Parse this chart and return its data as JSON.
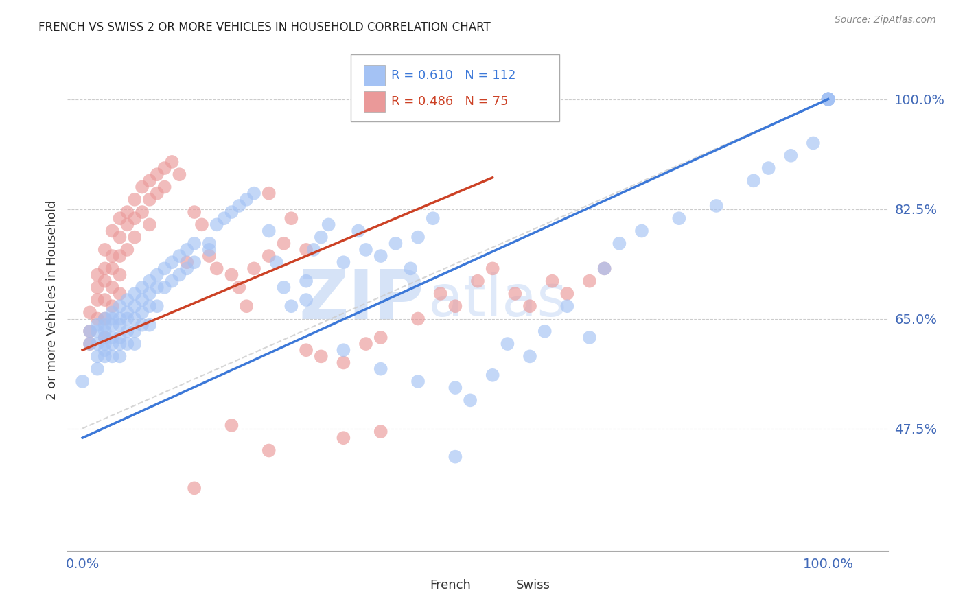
{
  "title": "FRENCH VS SWISS 2 OR MORE VEHICLES IN HOUSEHOLD CORRELATION CHART",
  "source": "Source: ZipAtlas.com",
  "ylabel": "2 or more Vehicles in Household",
  "french_R": 0.61,
  "french_N": 112,
  "swiss_R": 0.486,
  "swiss_N": 75,
  "french_color": "#a4c2f4",
  "swiss_color": "#ea9999",
  "french_line_color": "#3c78d8",
  "swiss_line_color": "#cc4125",
  "ref_line_color": "#cccccc",
  "watermark_zip": "ZIP",
  "watermark_atlas": "atlas",
  "legend_french_label": "French",
  "legend_swiss_label": "Swiss",
  "xlim": [
    -0.02,
    1.08
  ],
  "ylim": [
    0.28,
    1.08
  ],
  "y_ticks": [
    0.475,
    0.65,
    0.825,
    1.0
  ],
  "y_tick_labels": [
    "47.5%",
    "65.0%",
    "82.5%",
    "100.0%"
  ],
  "x_ticks": [
    0.0,
    1.0
  ],
  "x_tick_labels": [
    "0.0%",
    "100.0%"
  ],
  "french_trend": [
    0.0,
    0.46,
    1.0,
    1.0
  ],
  "swiss_trend": [
    0.0,
    0.6,
    0.55,
    0.875
  ],
  "ref_line": [
    0.0,
    0.475,
    1.0,
    1.0
  ],
  "french_x": [
    0.0,
    0.01,
    0.01,
    0.02,
    0.02,
    0.02,
    0.02,
    0.02,
    0.03,
    0.03,
    0.03,
    0.03,
    0.03,
    0.03,
    0.03,
    0.04,
    0.04,
    0.04,
    0.04,
    0.04,
    0.04,
    0.05,
    0.05,
    0.05,
    0.05,
    0.05,
    0.05,
    0.06,
    0.06,
    0.06,
    0.06,
    0.06,
    0.07,
    0.07,
    0.07,
    0.07,
    0.07,
    0.08,
    0.08,
    0.08,
    0.08,
    0.09,
    0.09,
    0.09,
    0.09,
    0.1,
    0.1,
    0.1,
    0.11,
    0.11,
    0.12,
    0.12,
    0.13,
    0.13,
    0.14,
    0.14,
    0.15,
    0.15,
    0.17,
    0.17,
    0.18,
    0.19,
    0.2,
    0.21,
    0.22,
    0.23,
    0.25,
    0.26,
    0.27,
    0.28,
    0.3,
    0.3,
    0.31,
    0.32,
    0.33,
    0.35,
    0.37,
    0.38,
    0.4,
    0.42,
    0.44,
    0.45,
    0.47,
    0.5,
    0.52,
    0.55,
    0.57,
    0.6,
    0.62,
    0.65,
    0.68,
    0.7,
    0.72,
    0.75,
    0.8,
    0.85,
    0.9,
    0.92,
    0.95,
    0.98,
    1.0,
    1.0,
    1.0,
    1.0,
    1.0,
    1.0,
    1.0,
    1.0,
    0.35,
    0.4,
    0.45,
    0.5
  ],
  "french_y": [
    0.55,
    0.63,
    0.61,
    0.64,
    0.63,
    0.61,
    0.59,
    0.57,
    0.65,
    0.64,
    0.63,
    0.61,
    0.6,
    0.62,
    0.59,
    0.66,
    0.65,
    0.64,
    0.62,
    0.61,
    0.59,
    0.67,
    0.65,
    0.64,
    0.62,
    0.61,
    0.59,
    0.68,
    0.66,
    0.65,
    0.63,
    0.61,
    0.69,
    0.67,
    0.65,
    0.63,
    0.61,
    0.7,
    0.68,
    0.66,
    0.64,
    0.71,
    0.69,
    0.67,
    0.64,
    0.72,
    0.7,
    0.67,
    0.73,
    0.7,
    0.74,
    0.71,
    0.75,
    0.72,
    0.76,
    0.73,
    0.77,
    0.74,
    0.77,
    0.76,
    0.8,
    0.81,
    0.82,
    0.83,
    0.84,
    0.85,
    0.79,
    0.74,
    0.7,
    0.67,
    0.71,
    0.68,
    0.76,
    0.78,
    0.8,
    0.74,
    0.79,
    0.76,
    0.75,
    0.77,
    0.73,
    0.78,
    0.81,
    0.54,
    0.52,
    0.56,
    0.61,
    0.59,
    0.63,
    0.67,
    0.62,
    0.73,
    0.77,
    0.79,
    0.81,
    0.83,
    0.87,
    0.89,
    0.91,
    0.93,
    1.0,
    1.0,
    1.0,
    1.0,
    1.0,
    1.0,
    1.0,
    1.0,
    0.6,
    0.57,
    0.55,
    0.43
  ],
  "swiss_x": [
    0.01,
    0.01,
    0.01,
    0.02,
    0.02,
    0.02,
    0.02,
    0.03,
    0.03,
    0.03,
    0.03,
    0.03,
    0.03,
    0.04,
    0.04,
    0.04,
    0.04,
    0.04,
    0.05,
    0.05,
    0.05,
    0.05,
    0.05,
    0.06,
    0.06,
    0.06,
    0.07,
    0.07,
    0.07,
    0.08,
    0.08,
    0.09,
    0.09,
    0.09,
    0.1,
    0.1,
    0.11,
    0.11,
    0.12,
    0.13,
    0.14,
    0.15,
    0.16,
    0.17,
    0.18,
    0.2,
    0.21,
    0.22,
    0.23,
    0.25,
    0.27,
    0.3,
    0.32,
    0.35,
    0.38,
    0.4,
    0.45,
    0.48,
    0.5,
    0.53,
    0.55,
    0.58,
    0.6,
    0.63,
    0.65,
    0.68,
    0.7,
    0.25,
    0.28,
    0.3,
    0.35,
    0.4,
    0.15,
    0.2,
    0.25
  ],
  "swiss_y": [
    0.66,
    0.63,
    0.61,
    0.72,
    0.7,
    0.68,
    0.65,
    0.76,
    0.73,
    0.71,
    0.68,
    0.65,
    0.62,
    0.79,
    0.75,
    0.73,
    0.7,
    0.67,
    0.81,
    0.78,
    0.75,
    0.72,
    0.69,
    0.82,
    0.8,
    0.76,
    0.84,
    0.81,
    0.78,
    0.86,
    0.82,
    0.87,
    0.84,
    0.8,
    0.88,
    0.85,
    0.89,
    0.86,
    0.9,
    0.88,
    0.74,
    0.82,
    0.8,
    0.75,
    0.73,
    0.72,
    0.7,
    0.67,
    0.73,
    0.75,
    0.77,
    0.6,
    0.59,
    0.58,
    0.61,
    0.62,
    0.65,
    0.69,
    0.67,
    0.71,
    0.73,
    0.69,
    0.67,
    0.71,
    0.69,
    0.71,
    0.73,
    0.85,
    0.81,
    0.76,
    0.46,
    0.47,
    0.38,
    0.48,
    0.44
  ]
}
